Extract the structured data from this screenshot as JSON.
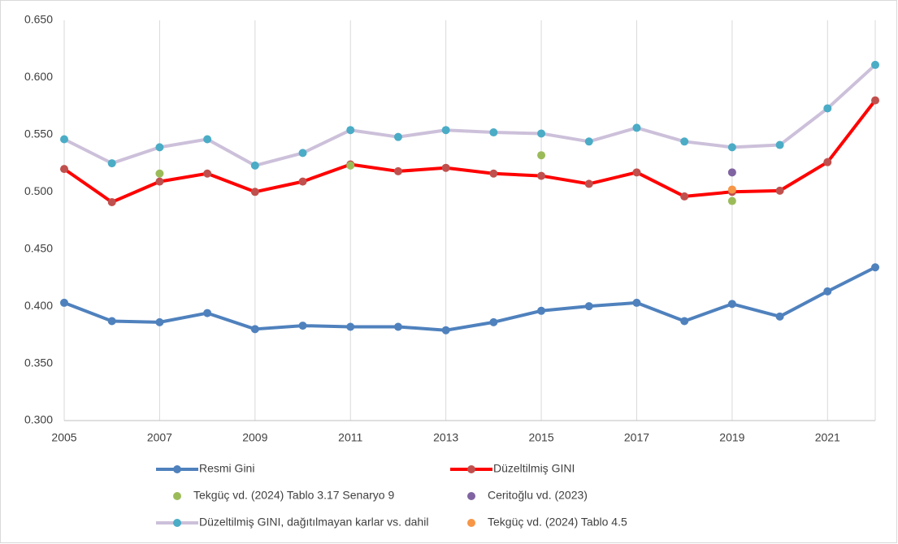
{
  "chart_data": {
    "type": "line",
    "x": [
      2005,
      2006,
      2007,
      2008,
      2009,
      2010,
      2011,
      2012,
      2013,
      2014,
      2015,
      2016,
      2017,
      2018,
      2019,
      2020,
      2021,
      2022
    ],
    "xlim": [
      2005,
      2022
    ],
    "xticks": [
      2005,
      2007,
      2009,
      2011,
      2013,
      2015,
      2017,
      2019,
      2021
    ],
    "ylim": [
      0.3,
      0.65
    ],
    "yticks": [
      {
        "value": 0.3,
        "label": "0.300"
      },
      {
        "value": 0.35,
        "label": "0.350"
      },
      {
        "value": 0.4,
        "label": "0.400"
      },
      {
        "value": 0.45,
        "label": "0.450"
      },
      {
        "value": 0.5,
        "label": "0.500"
      },
      {
        "value": 0.55,
        "label": "0.550"
      },
      {
        "value": 0.6,
        "label": "0.600"
      },
      {
        "value": 0.65,
        "label": "0.650"
      }
    ],
    "grid": "x",
    "series": [
      {
        "name": "Resmi Gini",
        "color": "#4f81bd",
        "marker_color": "#4f81bd",
        "mode": "lines+markers",
        "values": [
          0.403,
          0.387,
          0.386,
          0.394,
          0.38,
          0.383,
          0.382,
          0.382,
          0.379,
          0.386,
          0.396,
          0.4,
          0.403,
          0.387,
          0.402,
          0.391,
          0.413,
          0.434
        ]
      },
      {
        "name": "Düzeltilmiş GINI",
        "color": "#ff0000",
        "marker_color": "#c0504d",
        "mode": "lines+markers",
        "values": [
          0.52,
          0.491,
          0.509,
          0.516,
          0.5,
          0.509,
          0.524,
          0.518,
          0.521,
          0.516,
          0.514,
          0.507,
          0.517,
          0.496,
          0.5,
          0.501,
          0.526,
          0.58
        ]
      },
      {
        "name": "Tekgüç vd. (2024) Tablo 3.17 Senaryo 9",
        "color": "#9bbb59",
        "mode": "markers",
        "values": [
          null,
          null,
          0.516,
          null,
          null,
          null,
          0.523,
          null,
          null,
          null,
          0.532,
          null,
          null,
          null,
          0.492,
          null,
          null,
          null
        ]
      },
      {
        "name": "Ceritoğlu vd. (2023)",
        "color": "#8064a2",
        "mode": "markers",
        "values": [
          null,
          null,
          null,
          null,
          null,
          null,
          null,
          null,
          null,
          null,
          null,
          null,
          null,
          null,
          0.517,
          null,
          null,
          null
        ]
      },
      {
        "name": "Düzeltilmiş GINI, dağıtılmayan karlar vs. dahil",
        "color": "#ccc0da",
        "marker_color": "#4bacc6",
        "mode": "lines+markers",
        "values": [
          0.546,
          0.525,
          0.539,
          0.546,
          0.523,
          0.534,
          0.554,
          0.548,
          0.554,
          0.552,
          0.551,
          0.544,
          0.556,
          0.544,
          0.539,
          0.541,
          0.573,
          0.611
        ]
      },
      {
        "name": "Tekgüç vd. (2024) Tablo 4.5",
        "color": "#f79646",
        "mode": "markers",
        "values": [
          null,
          null,
          null,
          null,
          null,
          null,
          null,
          null,
          null,
          null,
          null,
          null,
          null,
          null,
          0.502,
          null,
          null,
          null
        ]
      }
    ]
  }
}
